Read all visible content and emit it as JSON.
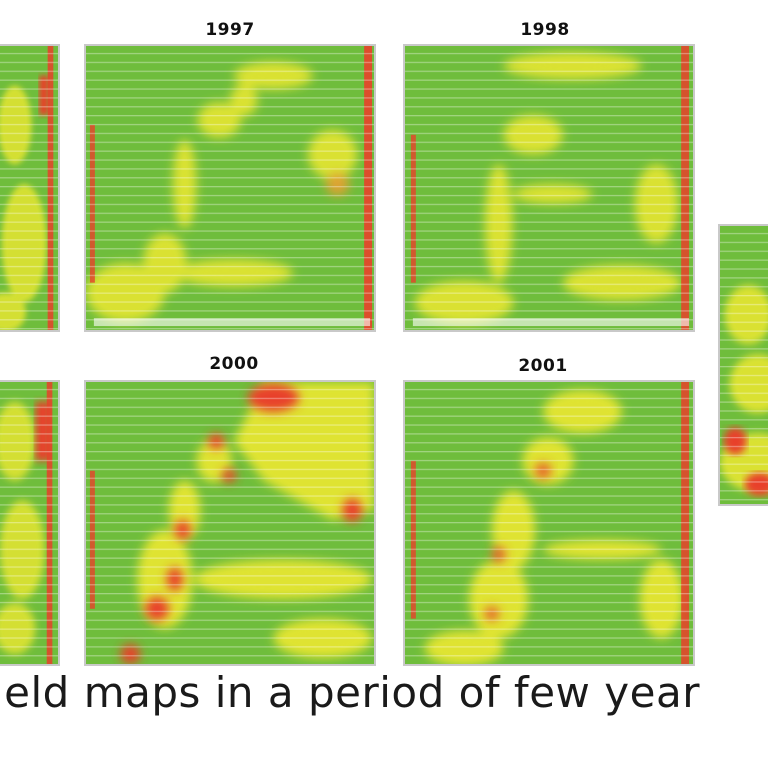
{
  "maps": [
    {
      "id": "top-left-partial",
      "year": ""
    },
    {
      "id": "top-1997",
      "year": "1997"
    },
    {
      "id": "top-1998",
      "year": "1998"
    },
    {
      "id": "right-partial",
      "year": ""
    },
    {
      "id": "bottom-left-partial",
      "year": ""
    },
    {
      "id": "bottom-2000",
      "year": "2000"
    },
    {
      "id": "bottom-2001",
      "year": "2001"
    }
  ],
  "colors": {
    "high_yield": "#6fbd3c",
    "mid_yield": "#e6e632",
    "low_yield": "#e8412a",
    "background": "#ffffff"
  },
  "caption": "ield maps in a period of few year"
}
